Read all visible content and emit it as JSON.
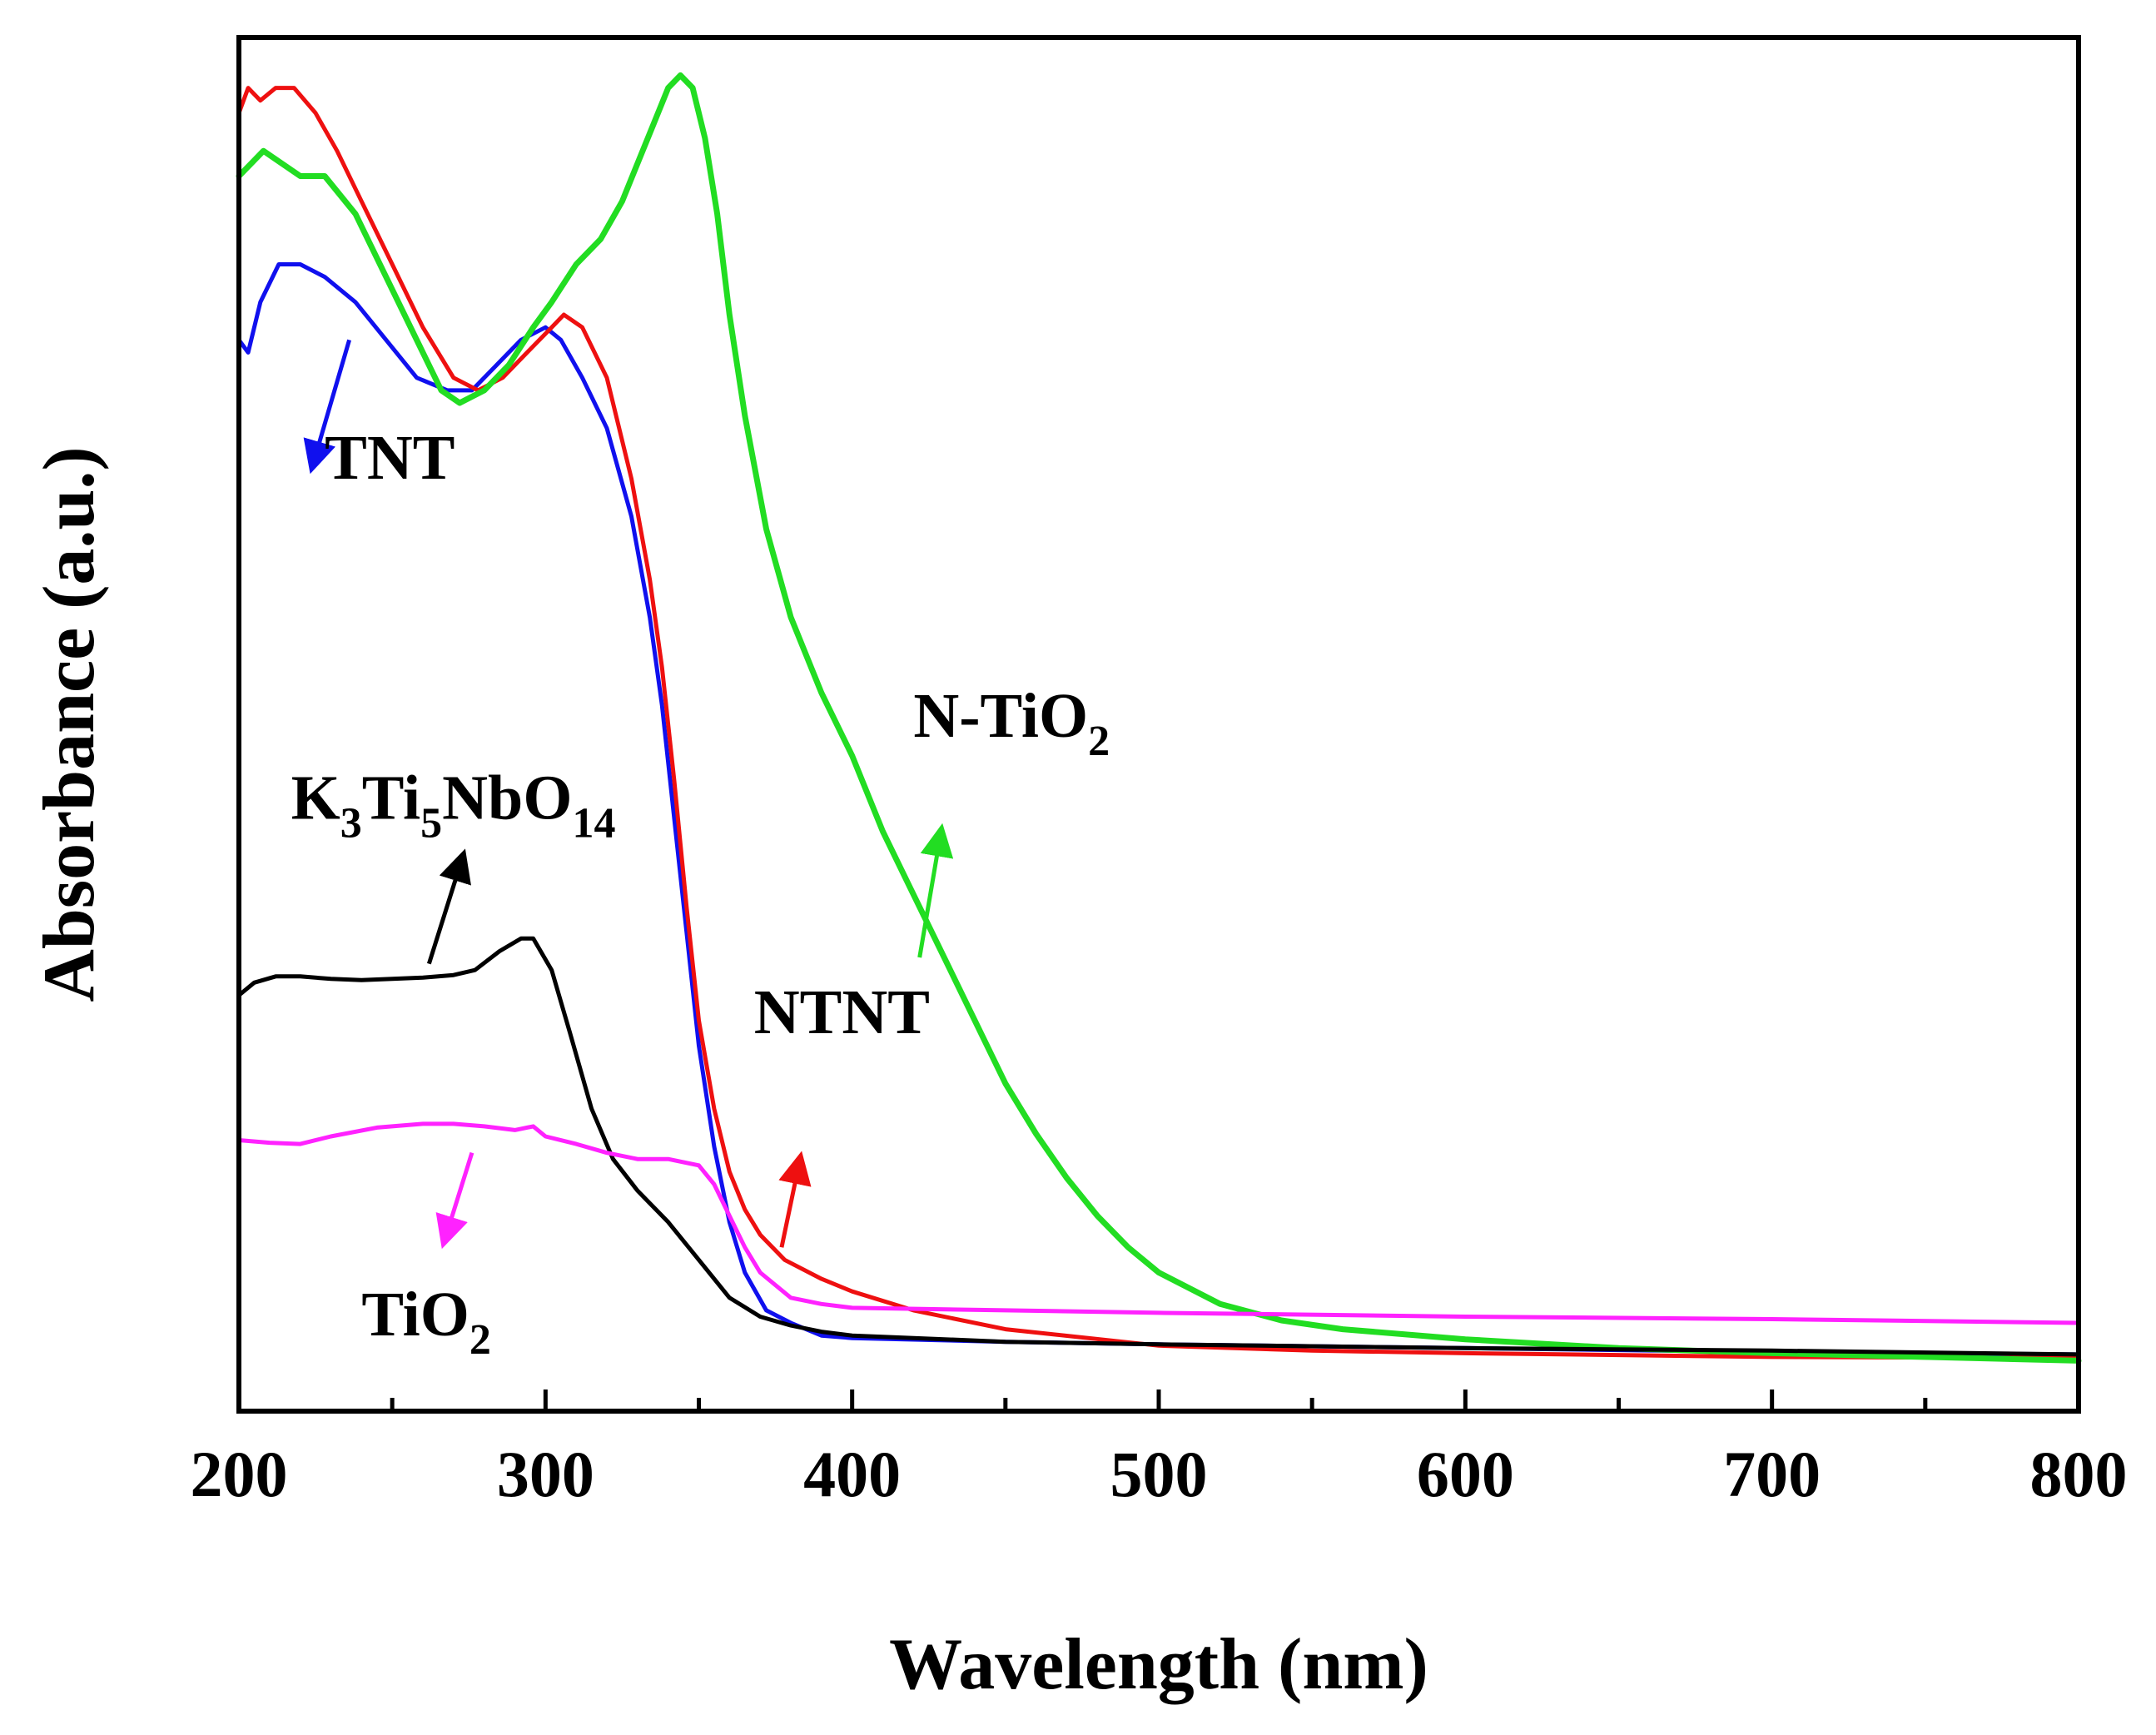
{
  "chart_data": {
    "type": "line",
    "title": "",
    "xlabel": "Wavelength (nm)",
    "ylabel": "Absorbance (a.u.)",
    "xlim": [
      200,
      800
    ],
    "ylim": [
      0,
      1.09
    ],
    "x_ticks": [
      200,
      300,
      400,
      500,
      600,
      700,
      800
    ],
    "x_tick_labels": [
      "200",
      "300",
      "400",
      "500",
      "600",
      "700",
      "800"
    ],
    "y_ticks_labeled": false,
    "grid": false,
    "legend": "none",
    "series": [
      {
        "name": "TNT",
        "color": "#1010ee",
        "x": [
          200,
          203,
          207,
          213,
          220,
          228,
          238,
          248,
          258,
          268,
          276,
          284,
          292,
          300,
          305,
          312,
          320,
          328,
          334,
          338,
          342,
          346,
          350,
          355,
          360,
          365,
          372,
          380,
          390,
          400,
          450,
          500,
          600,
          700,
          800
        ],
        "y": [
          0.85,
          0.84,
          0.88,
          0.91,
          0.91,
          0.9,
          0.88,
          0.85,
          0.82,
          0.81,
          0.81,
          0.83,
          0.85,
          0.86,
          0.85,
          0.82,
          0.78,
          0.71,
          0.63,
          0.56,
          0.47,
          0.38,
          0.29,
          0.21,
          0.15,
          0.11,
          0.08,
          0.07,
          0.06,
          0.058,
          0.055,
          0.053,
          0.05,
          0.047,
          0.045
        ]
      },
      {
        "name": "NTNT",
        "color": "#ee1010",
        "x": [
          200,
          203,
          207,
          212,
          218,
          225,
          232,
          240,
          250,
          260,
          270,
          278,
          286,
          294,
          302,
          306,
          312,
          320,
          328,
          334,
          338,
          342,
          346,
          350,
          355,
          360,
          365,
          370,
          378,
          390,
          400,
          420,
          450,
          500,
          550,
          600,
          700,
          800
        ],
        "y": [
          1.03,
          1.05,
          1.04,
          1.05,
          1.05,
          1.03,
          1.0,
          0.96,
          0.91,
          0.86,
          0.82,
          0.81,
          0.82,
          0.84,
          0.86,
          0.87,
          0.86,
          0.82,
          0.74,
          0.66,
          0.59,
          0.5,
          0.4,
          0.31,
          0.24,
          0.19,
          0.16,
          0.14,
          0.12,
          0.105,
          0.095,
          0.08,
          0.065,
          0.052,
          0.048,
          0.046,
          0.043,
          0.042
        ]
      },
      {
        "name": "N-TiO2",
        "color": "#22dd22",
        "x": [
          200,
          204,
          208,
          214,
          220,
          228,
          238,
          248,
          258,
          266,
          272,
          280,
          288,
          296,
          302,
          310,
          318,
          325,
          330,
          335,
          340,
          344,
          348,
          352,
          356,
          360,
          365,
          372,
          380,
          390,
          400,
          410,
          420,
          430,
          440,
          450,
          460,
          470,
          480,
          490,
          500,
          520,
          540,
          560,
          600,
          650,
          700,
          800
        ],
        "y": [
          0.98,
          0.99,
          1.0,
          0.99,
          0.98,
          0.98,
          0.95,
          0.9,
          0.85,
          0.81,
          0.8,
          0.81,
          0.83,
          0.86,
          0.88,
          0.91,
          0.93,
          0.96,
          0.99,
          1.02,
          1.05,
          1.06,
          1.05,
          1.01,
          0.95,
          0.87,
          0.79,
          0.7,
          0.63,
          0.57,
          0.52,
          0.46,
          0.41,
          0.36,
          0.31,
          0.26,
          0.22,
          0.185,
          0.155,
          0.13,
          0.11,
          0.085,
          0.072,
          0.065,
          0.057,
          0.05,
          0.046,
          0.04
        ]
      },
      {
        "name": "K3Ti5NbO14",
        "color": "#000000",
        "x": [
          200,
          205,
          212,
          220,
          230,
          240,
          250,
          260,
          270,
          277,
          285,
          292,
          296,
          302,
          308,
          315,
          322,
          330,
          340,
          350,
          360,
          370,
          380,
          390,
          400,
          450,
          500,
          600,
          700,
          800
        ],
        "y": [
          0.33,
          0.34,
          0.345,
          0.345,
          0.343,
          0.342,
          0.343,
          0.344,
          0.346,
          0.35,
          0.365,
          0.375,
          0.375,
          0.35,
          0.3,
          0.24,
          0.2,
          0.175,
          0.15,
          0.12,
          0.09,
          0.075,
          0.068,
          0.063,
          0.06,
          0.055,
          0.053,
          0.05,
          0.048,
          0.045
        ]
      },
      {
        "name": "TiO2",
        "color": "#ff22ff",
        "x": [
          200,
          210,
          220,
          230,
          245,
          260,
          270,
          280,
          290,
          296,
          300,
          310,
          320,
          330,
          340,
          350,
          355,
          360,
          365,
          370,
          380,
          390,
          400,
          450,
          500,
          600,
          700,
          800
        ],
        "y": [
          0.215,
          0.213,
          0.212,
          0.218,
          0.225,
          0.228,
          0.228,
          0.226,
          0.223,
          0.226,
          0.218,
          0.212,
          0.205,
          0.2,
          0.2,
          0.195,
          0.18,
          0.155,
          0.13,
          0.11,
          0.09,
          0.085,
          0.082,
          0.08,
          0.078,
          0.075,
          0.073,
          0.07
        ]
      }
    ],
    "annotations": [
      {
        "text": "TNT",
        "sub": [],
        "color": "#000000",
        "x": 228,
        "y": 0.74,
        "arrow": {
          "color": "#1010ee",
          "from": [
            236,
            0.85
          ],
          "to": [
            224,
            0.75
          ]
        }
      },
      {
        "text": "NTNT",
        "color": "#000000",
        "x": 368,
        "y": 0.3,
        "arrow": {
          "color": "#ee1010",
          "from": [
            377,
            0.13
          ],
          "to": [
            383,
            0.2
          ]
        }
      },
      {
        "text": "N-TiO",
        "sub": "2",
        "color": "#000000",
        "x": 420,
        "y": 0.535,
        "arrow": {
          "color": "#22dd22",
          "from": [
            422,
            0.36
          ],
          "to": [
            429,
            0.46
          ]
        }
      },
      {
        "text": "K",
        "sub_parts": [
          "3",
          "Ti",
          "5",
          "NbO",
          "14"
        ],
        "color": "#000000",
        "x": 217,
        "y": 0.47,
        "arrow": {
          "color": "#000000",
          "from": [
            262,
            0.355
          ],
          "to": [
            273,
            0.44
          ]
        }
      },
      {
        "text": "TiO",
        "sub": "2",
        "color": "#000000",
        "x": 240,
        "y": 0.06,
        "arrow": {
          "color": "#ff22ff",
          "from": [
            276,
            0.205
          ],
          "to": [
            267,
            0.135
          ]
        }
      }
    ]
  }
}
